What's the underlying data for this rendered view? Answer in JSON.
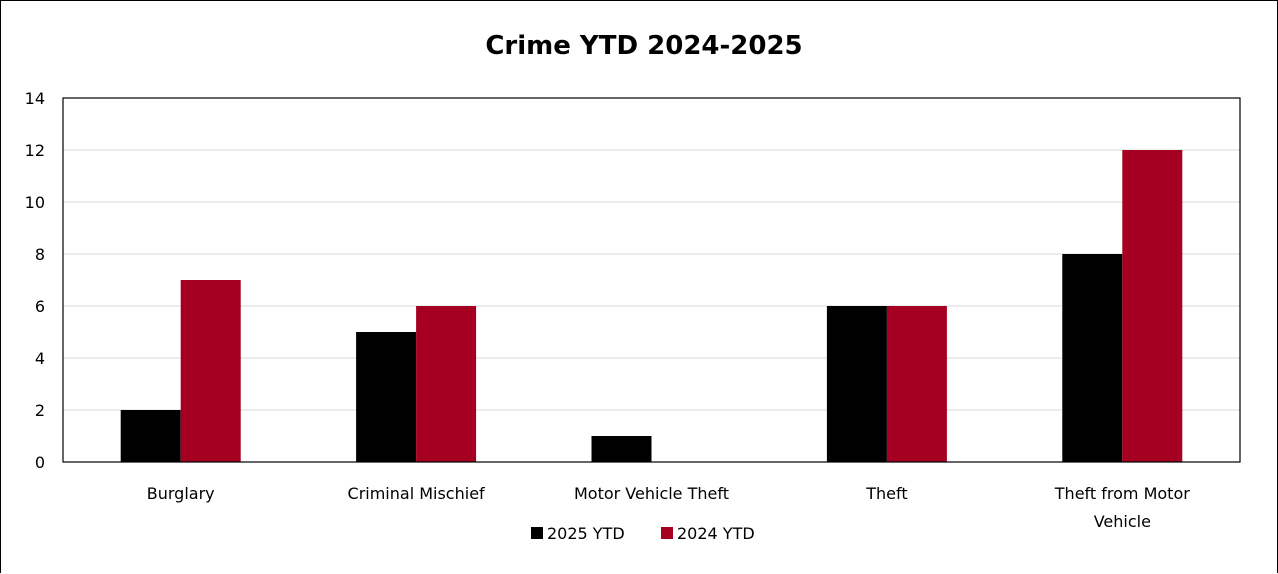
{
  "chart_data": {
    "type": "bar",
    "title": "Crime YTD 2024-2025",
    "xlabel": "",
    "ylabel": "",
    "ylim": [
      0,
      14
    ],
    "yticks": [
      0,
      2,
      4,
      6,
      8,
      10,
      12,
      14
    ],
    "grid": true,
    "legend_position": "bottom",
    "categories": [
      [
        "Burglary"
      ],
      [
        "Criminal Mischief"
      ],
      [
        "Motor Vehicle Theft"
      ],
      [
        "Theft"
      ],
      [
        "Theft from Motor",
        "Vehicle"
      ]
    ],
    "series": [
      {
        "name": "2025 YTD",
        "color": "#000000",
        "values": [
          2,
          5,
          1,
          6,
          8
        ]
      },
      {
        "name": "2024 YTD",
        "color": "#A50021",
        "values": [
          7,
          6,
          0,
          6,
          12
        ]
      }
    ]
  }
}
